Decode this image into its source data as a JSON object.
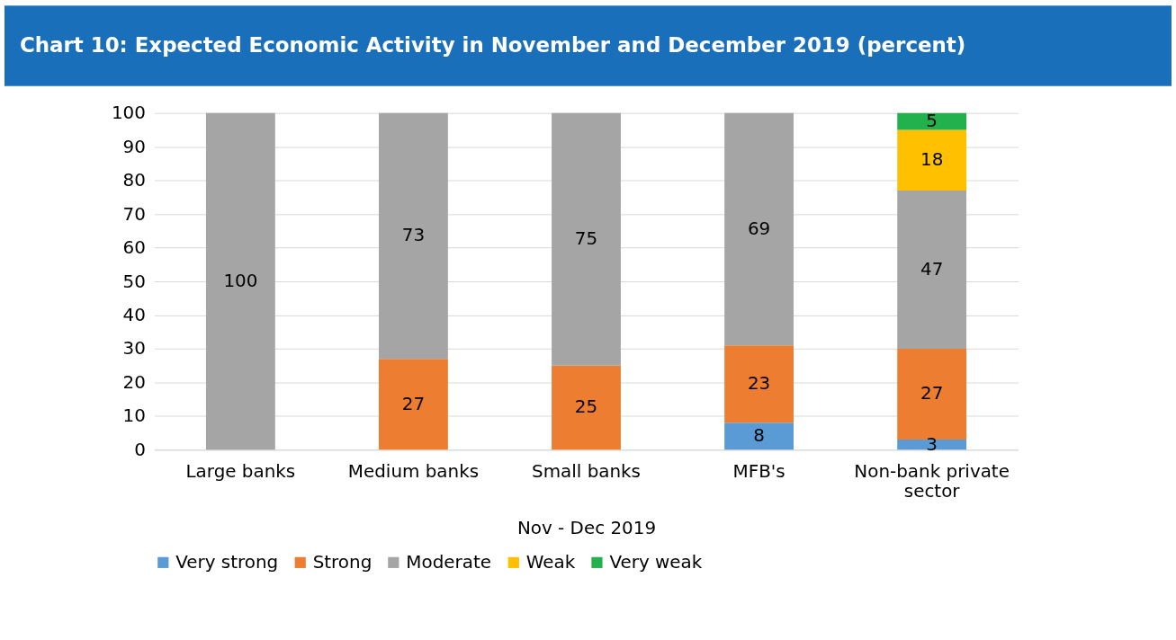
{
  "chart_data": {
    "type": "bar",
    "title": "Chart 10: Expected Economic Activity in November and December 2019 (percent)",
    "categories": [
      "Large banks",
      "Medium banks",
      "Small banks",
      "MFB's",
      "Non-bank private sector"
    ],
    "xlabel": "Nov - Dec 2019",
    "stacked": true,
    "data_labels": true,
    "grid": "y",
    "legend": "bottom",
    "ylim": [
      0,
      100
    ],
    "yticks": [
      0,
      10,
      20,
      30,
      40,
      50,
      60,
      70,
      80,
      90,
      100
    ],
    "series": [
      {
        "name": "Very strong",
        "color": "#5b9bd5",
        "values": [
          null,
          null,
          null,
          8,
          3
        ]
      },
      {
        "name": "Strong",
        "color": "#ed7d31",
        "values": [
          null,
          27,
          25,
          23,
          27
        ]
      },
      {
        "name": "Moderate",
        "color": "#a5a5a5",
        "values": [
          100,
          73,
          75,
          69,
          47
        ]
      },
      {
        "name": "Weak",
        "color": "#ffc000",
        "values": [
          null,
          null,
          null,
          null,
          18
        ]
      },
      {
        "name": "Very weak",
        "color": "#22b14c",
        "values": [
          null,
          null,
          null,
          null,
          5
        ]
      }
    ]
  }
}
